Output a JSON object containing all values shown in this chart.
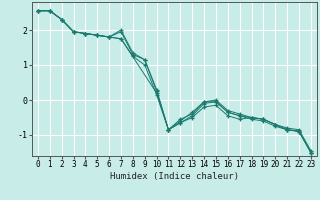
{
  "title": "",
  "xlabel": "Humidex (Indice chaleur)",
  "ylabel": "",
  "background_color": "#c8ede8",
  "grid_color": "#ffffff",
  "line_color": "#1a7a6e",
  "xlim": [
    -0.5,
    23.5
  ],
  "ylim": [
    -1.6,
    2.8
  ],
  "yticks": [
    -1,
    0,
    1,
    2
  ],
  "xticks": [
    0,
    1,
    2,
    3,
    4,
    5,
    6,
    7,
    8,
    9,
    10,
    11,
    12,
    13,
    14,
    15,
    16,
    17,
    18,
    19,
    20,
    21,
    22,
    23
  ],
  "series1_x": [
    0,
    1,
    2,
    3,
    4,
    5,
    6,
    7,
    8,
    9,
    10,
    11,
    12,
    13,
    14,
    15,
    16,
    17,
    18,
    19,
    20,
    21,
    22,
    23
  ],
  "series1_y": [
    2.55,
    2.55,
    2.3,
    1.95,
    1.9,
    1.85,
    1.8,
    1.95,
    1.3,
    1.15,
    0.25,
    -0.85,
    -0.65,
    -0.45,
    -0.1,
    -0.05,
    -0.35,
    -0.45,
    -0.55,
    -0.6,
    -0.75,
    -0.85,
    -0.9,
    -1.5
  ],
  "series2_x": [
    0,
    1,
    2,
    3,
    4,
    5,
    6,
    7,
    8,
    9,
    10,
    11,
    12,
    13,
    14,
    15,
    16,
    17,
    18,
    19,
    20,
    21,
    22,
    23
  ],
  "series2_y": [
    2.55,
    2.55,
    2.3,
    1.95,
    1.9,
    1.85,
    1.8,
    1.75,
    1.25,
    1.0,
    0.15,
    -0.85,
    -0.65,
    -0.5,
    -0.2,
    -0.15,
    -0.45,
    -0.55,
    -0.5,
    -0.55,
    -0.7,
    -0.85,
    -0.9,
    -1.5
  ],
  "series3_x": [
    0,
    1,
    2,
    3,
    4,
    5,
    6,
    7,
    8,
    9,
    10,
    11,
    12,
    13,
    14,
    15,
    16,
    17,
    18,
    19,
    20,
    21,
    22,
    23
  ],
  "series3_y": [
    2.55,
    2.55,
    2.3,
    1.95,
    1.9,
    1.85,
    1.8,
    2.0,
    1.35,
    1.15,
    0.3,
    -0.85,
    -0.55,
    -0.4,
    -0.05,
    0.0,
    -0.3,
    -0.4,
    -0.5,
    -0.55,
    -0.7,
    -0.8,
    -0.85,
    -1.45
  ],
  "series4_x": [
    0,
    1,
    2,
    3,
    4,
    5,
    6,
    7,
    10,
    11,
    12,
    13,
    14,
    15,
    16,
    17,
    18,
    19,
    20,
    21,
    22,
    23
  ],
  "series4_y": [
    2.55,
    2.55,
    2.3,
    1.95,
    1.9,
    1.85,
    1.8,
    1.75,
    0.2,
    -0.85,
    -0.6,
    -0.35,
    -0.05,
    -0.05,
    -0.35,
    -0.45,
    -0.5,
    -0.55,
    -0.7,
    -0.85,
    -0.88,
    -1.5
  ],
  "xlabel_fontsize": 6.5,
  "tick_fontsize": 5.5
}
